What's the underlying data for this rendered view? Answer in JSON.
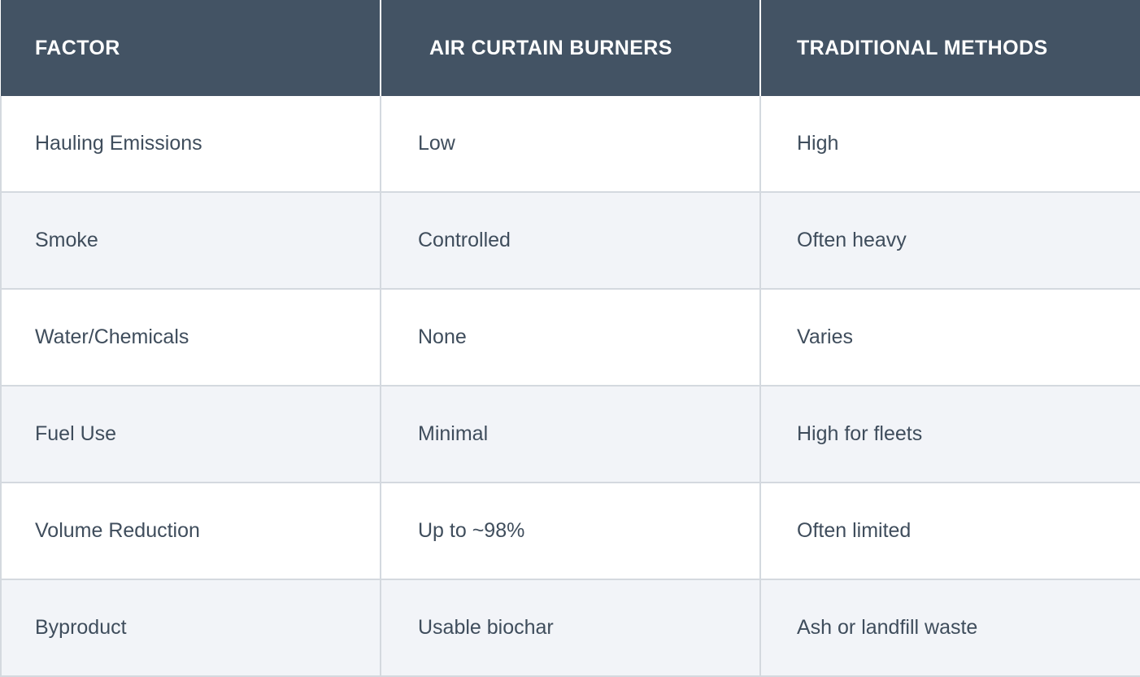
{
  "table": {
    "headers": [
      "FACTOR",
      "AIR CURTAIN BURNERS",
      "TRADITIONAL METHODS"
    ],
    "rows": [
      [
        "Hauling Emissions",
        "Low",
        "High"
      ],
      [
        "Smoke",
        "Controlled",
        "Often heavy"
      ],
      [
        "Water/Chemicals",
        "None",
        "Varies"
      ],
      [
        "Fuel Use",
        "Minimal",
        "High for fleets"
      ],
      [
        "Volume Reduction",
        "Up to ~98%",
        "Often limited"
      ],
      [
        "Byproduct",
        "Usable biochar",
        "Ash or landfill waste"
      ]
    ],
    "colors": {
      "header_bg": "#435364",
      "header_text": "#ffffff",
      "row_alt_bg": "#f2f4f8",
      "body_text": "#3f4d5c",
      "border": "#d4d9df"
    }
  }
}
